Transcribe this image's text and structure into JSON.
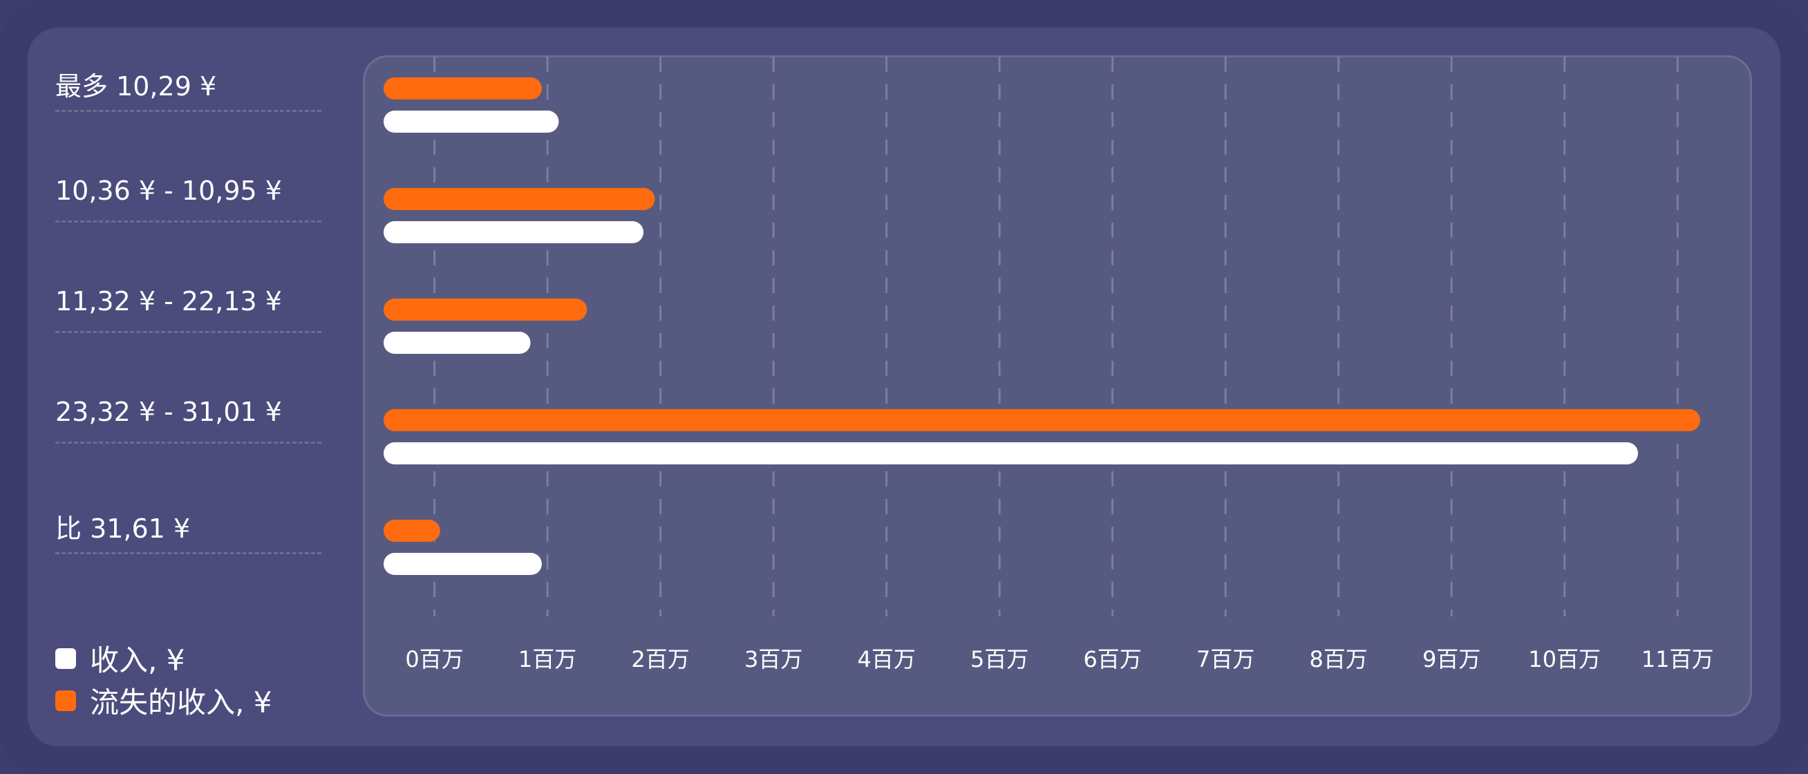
{
  "chart_data": {
    "type": "bar",
    "orientation": "horizontal",
    "categories": [
      "最多 10,29 ¥",
      "10,36 ¥ - 10,95 ¥",
      "11,32 ¥ - 22,13 ¥",
      "23,32 ¥ - 31,01 ¥",
      "比 31,61 ¥"
    ],
    "series": [
      {
        "name": "流失的收入, ¥",
        "color": "#ff6b0f",
        "values": [
          0.95,
          1.95,
          1.35,
          11.2,
          0.05
        ]
      },
      {
        "name": "收入, ¥",
        "color": "#ffffff",
        "values": [
          1.1,
          1.85,
          0.85,
          10.65,
          0.95
        ]
      }
    ],
    "x_ticks": [
      "0百万",
      "1百万",
      "2百万",
      "3百万",
      "4百万",
      "5百万",
      "6百万",
      "7百万",
      "8百万",
      "9百万",
      "10百万",
      "11百万"
    ],
    "xlim": [
      -0.45,
      11.2
    ],
    "grid": true,
    "legend_position": "bottom-left"
  },
  "legend": [
    {
      "label": "收入, ¥",
      "color": "#ffffff"
    },
    {
      "label": "流失的收入, ¥",
      "color": "#ff6b0f"
    }
  ]
}
